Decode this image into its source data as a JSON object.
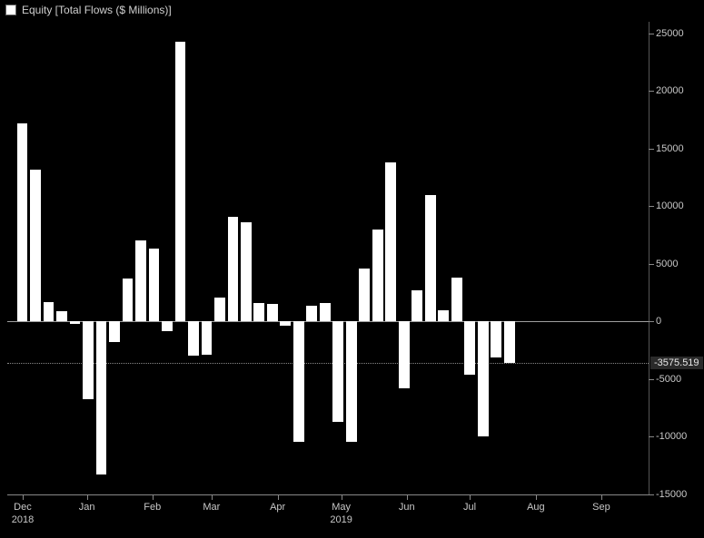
{
  "chart": {
    "type": "bar",
    "background_color": "#000000",
    "bar_color": "#ffffff",
    "text_color": "#c8c8c8",
    "axis_color": "#888888",
    "legend": {
      "swatch_color": "#ffffff",
      "label": "Equity [Total Flows ($ Millions)]",
      "fontsize": 12
    },
    "yaxis": {
      "ylim_min": -15000,
      "ylim_max": 26000,
      "ticks": [
        -15000,
        -10000,
        -5000,
        0,
        5000,
        10000,
        15000,
        20000,
        25000
      ],
      "tick_labels": [
        "-15000",
        "-10000",
        "-5000",
        "0",
        "5000",
        "10000",
        "15000",
        "20000",
        "25000"
      ],
      "tick_fontsize": 11
    },
    "last_value": {
      "value": -3575.519,
      "label": "-3575.519",
      "tag_bg": "#2a2a2a"
    },
    "xaxis": {
      "months": [
        {
          "label": "Dec",
          "sub": "2018",
          "pos": 0.024
        },
        {
          "label": "Jan",
          "sub": "",
          "pos": 0.124
        },
        {
          "label": "Feb",
          "sub": "",
          "pos": 0.226
        },
        {
          "label": "Mar",
          "sub": "",
          "pos": 0.318
        },
        {
          "label": "Apr",
          "sub": "",
          "pos": 0.421
        },
        {
          "label": "May",
          "sub": "2019",
          "pos": 0.52
        },
        {
          "label": "Jun",
          "sub": "",
          "pos": 0.622
        },
        {
          "label": "Jul",
          "sub": "",
          "pos": 0.72
        },
        {
          "label": "Aug",
          "sub": "",
          "pos": 0.823
        },
        {
          "label": "Sep",
          "sub": "",
          "pos": 0.925
        }
      ],
      "tick_fontsize": 11
    },
    "bars": {
      "bar_width_frac": 0.0165,
      "gap_frac": 0.0205,
      "first_x_frac": 0.015,
      "values": [
        17200,
        13200,
        1700,
        900,
        -200,
        -6700,
        -13300,
        -1800,
        3700,
        7000,
        6300,
        -800,
        24300,
        -3000,
        -2900,
        2100,
        9100,
        8600,
        1600,
        1500,
        -400,
        -10400,
        1400,
        1600,
        -8700,
        -10400,
        4600,
        8000,
        13800,
        -5800,
        2700,
        11000,
        1000,
        3800,
        -4600,
        -10000,
        -3100,
        -3575.519
      ]
    }
  }
}
